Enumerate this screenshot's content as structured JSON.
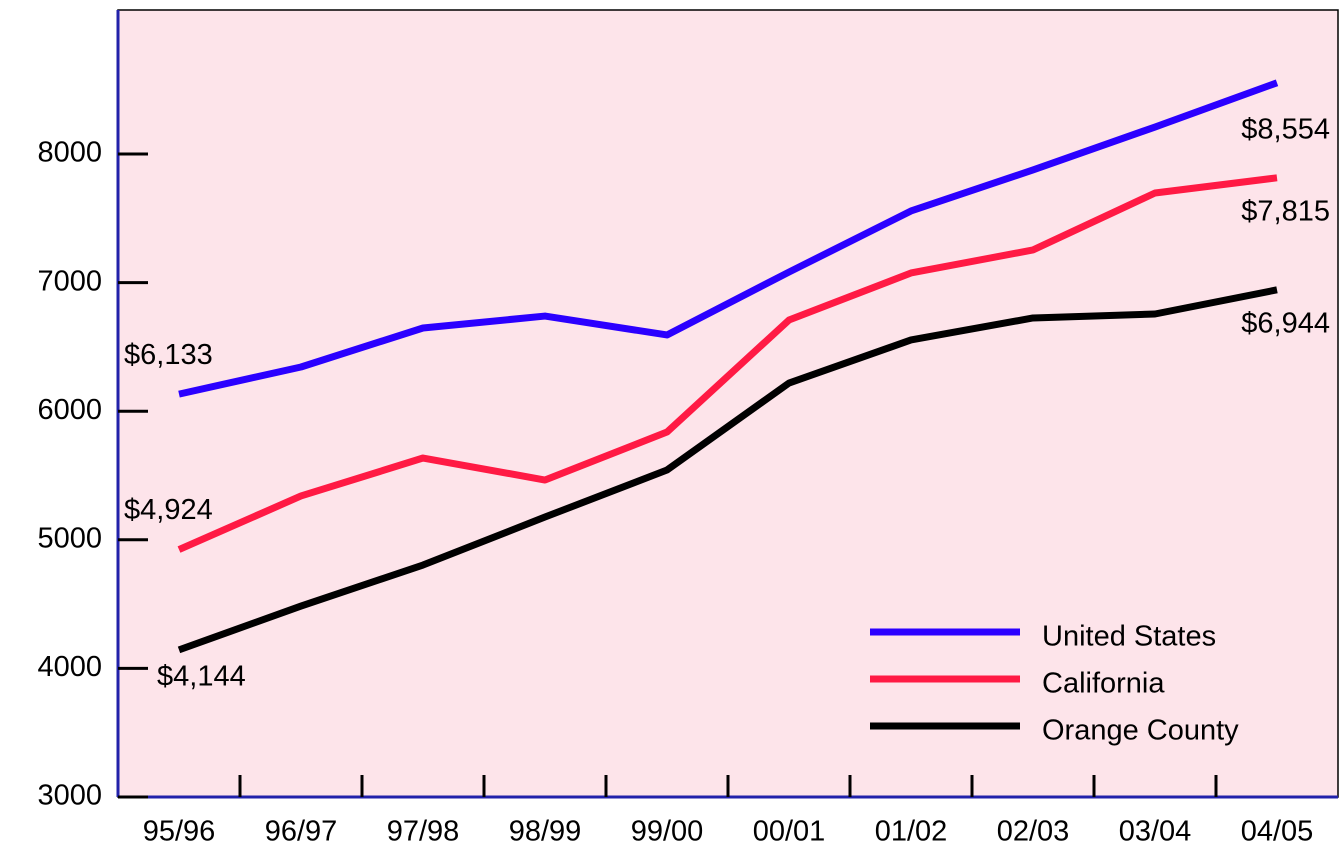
{
  "chart_data": {
    "type": "line",
    "categories": [
      "95/96",
      "96/97",
      "97/98",
      "98/99",
      "99/00",
      "00/01",
      "01/02",
      "02/03",
      "03/04",
      "04/05"
    ],
    "series": [
      {
        "name": "United States",
        "color": "#2b00ff",
        "values": [
          6133,
          6344,
          6647,
          6740,
          6593,
          7082,
          7557,
          7876,
          8210,
          8554
        ],
        "value_labels": [
          "$6,133",
          null,
          null,
          null,
          null,
          null,
          null,
          null,
          null,
          "$8,554"
        ]
      },
      {
        "name": "California",
        "color": "#ff1a44",
        "values": [
          4924,
          5341,
          5636,
          5465,
          5838,
          6709,
          7075,
          7254,
          7697,
          7815
        ],
        "value_labels": [
          "$4,924",
          null,
          null,
          null,
          null,
          null,
          null,
          null,
          null,
          "$7,815"
        ]
      },
      {
        "name": "Orange County",
        "color": "#000000",
        "values": [
          4144,
          4485,
          4804,
          5177,
          5543,
          6219,
          6554,
          6725,
          6756,
          6944
        ],
        "value_labels": [
          "$4,144",
          null,
          null,
          null,
          null,
          null,
          null,
          null,
          null,
          "$6,944"
        ]
      }
    ],
    "ylim": [
      3000,
      9120
    ],
    "yticks": [
      3000,
      4000,
      5000,
      6000,
      7000,
      8000
    ],
    "legend": "lower right",
    "background": "#fde4ea"
  }
}
